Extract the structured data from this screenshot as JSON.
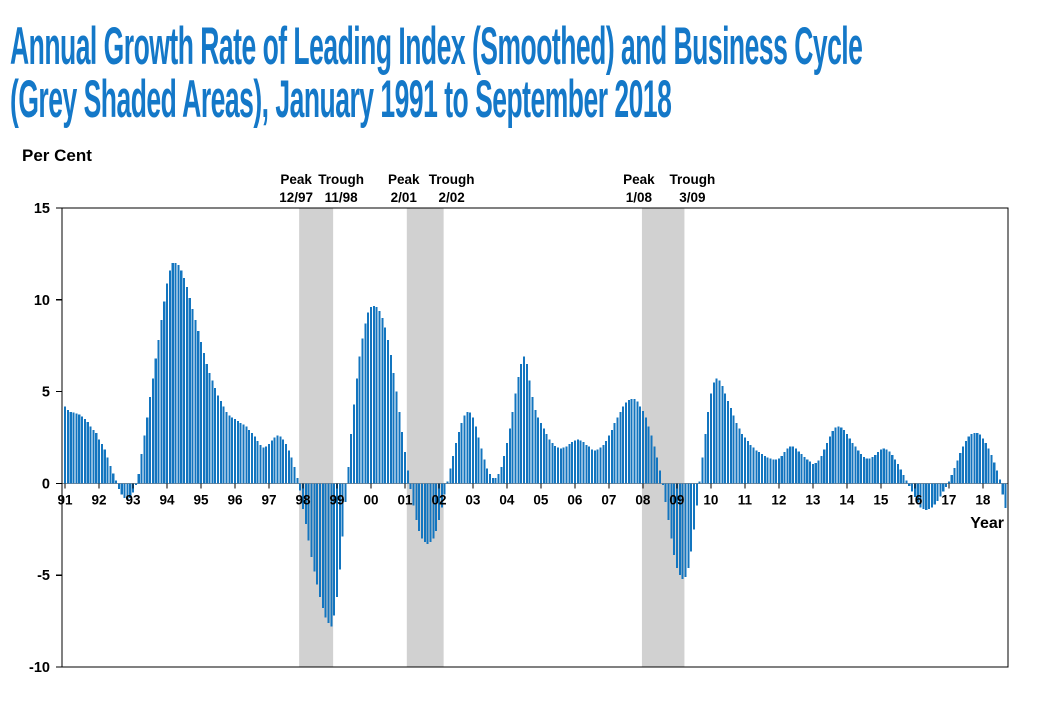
{
  "title": {
    "line1": "Annual Growth Rate of Leading Index (Smoothed) and Business Cycle",
    "line2": "(Grey Shaded Areas), January 1991 to September 2018"
  },
  "colors": {
    "title": "#1478C8",
    "bar": "#1375BF",
    "shade": "#D1D1D1",
    "axis": "#000000",
    "zero_line": "#8C8C8C"
  },
  "chart": {
    "y_axis_title": "Per Cent",
    "x_axis_title": "Year",
    "y_tick_labels": [
      "15",
      "10",
      "5",
      "0",
      "-5",
      "-10"
    ],
    "y_tick_values": [
      15,
      10,
      5,
      0,
      -5,
      -10
    ],
    "year_labels": [
      "91",
      "92",
      "93",
      "94",
      "95",
      "96",
      "97",
      "98",
      "99",
      "00",
      "01",
      "02",
      "03",
      "04",
      "05",
      "06",
      "07",
      "08",
      "09",
      "10",
      "11",
      "12",
      "13",
      "14",
      "15",
      "16",
      "17",
      "18"
    ],
    "annotations": [
      {
        "label": "Peak",
        "date": "12/97",
        "anchor_month": 83,
        "kind": "peak"
      },
      {
        "label": "Trough",
        "date": "11/98",
        "anchor_month": 95,
        "kind": "trough"
      },
      {
        "label": "Peak",
        "date": "2/01",
        "anchor_month": 121,
        "kind": "peak"
      },
      {
        "label": "Trough",
        "date": "2/02",
        "anchor_month": 134,
        "kind": "trough"
      },
      {
        "label": "Peak",
        "date": "1/08",
        "anchor_month": 204,
        "kind": "peak"
      },
      {
        "label": "Trough",
        "date": "3/09",
        "anchor_month": 219,
        "kind": "trough"
      }
    ]
  },
  "chart_data": {
    "type": "bar",
    "title": "Annual Growth Rate of Leading Index (Smoothed) and Business Cycle (Grey Shaded Areas), January 1991 to September 2018",
    "frequency": "monthly",
    "x_start": "1991-01",
    "x_end": "2018-09",
    "xlabel": "Year",
    "ylabel": "Per Cent",
    "ylim": [
      -10,
      15
    ],
    "grid": false,
    "values": [
      4.2,
      4.0,
      3.9,
      3.85,
      3.8,
      3.75,
      3.65,
      3.5,
      3.35,
      3.1,
      2.9,
      2.75,
      2.4,
      2.15,
      1.85,
      1.4,
      0.95,
      0.55,
      0.15,
      -0.3,
      -0.6,
      -0.8,
      -0.9,
      -0.8,
      -0.5,
      -0.1,
      0.5,
      1.6,
      2.6,
      3.6,
      4.7,
      5.7,
      6.8,
      7.8,
      8.9,
      9.9,
      10.9,
      11.6,
      12.0,
      12.0,
      11.9,
      11.6,
      11.2,
      10.7,
      10.1,
      9.5,
      8.9,
      8.3,
      7.7,
      7.1,
      6.5,
      6.0,
      5.6,
      5.2,
      4.8,
      4.5,
      4.2,
      3.9,
      3.7,
      3.6,
      3.5,
      3.4,
      3.3,
      3.2,
      3.1,
      2.9,
      2.75,
      2.55,
      2.3,
      2.1,
      1.95,
      2.0,
      2.15,
      2.35,
      2.5,
      2.6,
      2.55,
      2.4,
      2.15,
      1.8,
      1.4,
      0.9,
      0.3,
      -0.4,
      -1.4,
      -2.2,
      -3.1,
      -4.0,
      -4.8,
      -5.5,
      -6.2,
      -6.8,
      -7.3,
      -7.6,
      -7.8,
      -7.2,
      -6.2,
      -4.7,
      -2.9,
      -1.0,
      0.9,
      2.7,
      4.3,
      5.7,
      6.9,
      7.9,
      8.7,
      9.3,
      9.6,
      9.65,
      9.6,
      9.4,
      9.0,
      8.5,
      7.8,
      7.0,
      6.0,
      5.0,
      3.9,
      2.8,
      1.7,
      0.7,
      -0.3,
      -1.2,
      -2.0,
      -2.6,
      -3.0,
      -3.2,
      -3.3,
      -3.2,
      -3.0,
      -2.6,
      -2.0,
      -1.3,
      -0.6,
      0.1,
      0.8,
      1.5,
      2.2,
      2.8,
      3.3,
      3.7,
      3.9,
      3.85,
      3.6,
      3.1,
      2.5,
      1.9,
      1.3,
      0.8,
      0.5,
      0.3,
      0.3,
      0.5,
      0.9,
      1.5,
      2.2,
      3.0,
      3.9,
      4.9,
      5.8,
      6.5,
      6.9,
      6.5,
      5.6,
      4.7,
      4.0,
      3.6,
      3.3,
      3.0,
      2.7,
      2.4,
      2.2,
      2.05,
      1.95,
      1.9,
      1.95,
      2.0,
      2.15,
      2.25,
      2.35,
      2.4,
      2.35,
      2.25,
      2.1,
      2.0,
      1.85,
      1.8,
      1.85,
      1.95,
      2.1,
      2.3,
      2.6,
      2.9,
      3.3,
      3.6,
      3.9,
      4.2,
      4.4,
      4.55,
      4.6,
      4.6,
      4.45,
      4.2,
      3.95,
      3.6,
      3.1,
      2.6,
      2.0,
      1.4,
      0.7,
      -0.1,
      -1.0,
      -2.0,
      -3.0,
      -3.9,
      -4.6,
      -5.0,
      -5.2,
      -5.1,
      -4.6,
      -3.7,
      -2.5,
      -1.2,
      0.1,
      1.4,
      2.7,
      3.9,
      4.9,
      5.5,
      5.7,
      5.6,
      5.3,
      4.9,
      4.5,
      4.1,
      3.7,
      3.3,
      3.0,
      2.7,
      2.5,
      2.3,
      2.1,
      1.95,
      1.8,
      1.7,
      1.6,
      1.5,
      1.4,
      1.35,
      1.3,
      1.3,
      1.35,
      1.5,
      1.7,
      1.9,
      2.0,
      2.0,
      1.9,
      1.75,
      1.6,
      1.45,
      1.3,
      1.2,
      1.05,
      1.1,
      1.25,
      1.5,
      1.85,
      2.2,
      2.55,
      2.85,
      3.05,
      3.1,
      3.05,
      2.9,
      2.7,
      2.45,
      2.2,
      2.0,
      1.8,
      1.6,
      1.45,
      1.35,
      1.35,
      1.45,
      1.55,
      1.7,
      1.85,
      1.9,
      1.85,
      1.75,
      1.55,
      1.3,
      1.05,
      0.75,
      0.45,
      0.15,
      -0.15,
      -0.45,
      -0.75,
      -1.05,
      -1.3,
      -1.4,
      -1.45,
      -1.4,
      -1.3,
      -1.15,
      -0.95,
      -0.7,
      -0.45,
      -0.2,
      0.1,
      0.45,
      0.85,
      1.25,
      1.65,
      2.0,
      2.3,
      2.55,
      2.7,
      2.75,
      2.75,
      2.65,
      2.45,
      2.2,
      1.9,
      1.55,
      1.15,
      0.7,
      0.2,
      -0.6,
      -1.35
    ],
    "recessions": [
      {
        "peak": "12/97",
        "trough": "11/98",
        "start_month_index": 83,
        "end_month_index": 94
      },
      {
        "peak": "2/01",
        "trough": "2/02",
        "start_month_index": 121,
        "end_month_index": 133
      },
      {
        "peak": "1/08",
        "trough": "3/09",
        "start_month_index": 204,
        "end_month_index": 218
      }
    ],
    "legend_position": "none"
  }
}
